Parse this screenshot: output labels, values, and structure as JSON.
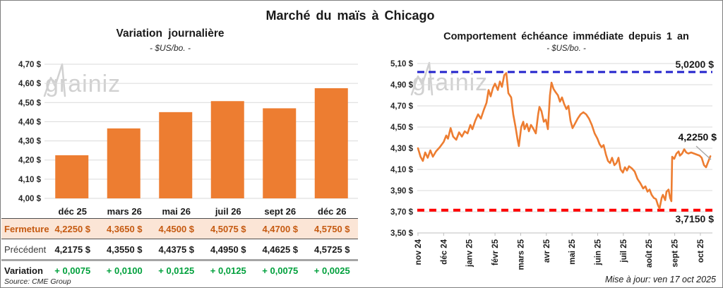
{
  "page": {
    "title": "Marché du maïs à Chicago",
    "source": "Source: CME Group",
    "updated": "Mise à jour: ven 17 oct 2025",
    "watermark_prefix": "grain",
    "watermark_suffix": "iz"
  },
  "colors": {
    "orange": "#ED7D31",
    "blue": "#2222CC",
    "red": "#FF0000",
    "green": "#00A03C",
    "close_text": "#C55A11",
    "close_bg": "#FBE5D6",
    "grid": "#DADADA",
    "axis": "#BFBFBF",
    "leader": "#A6A6A6",
    "watermark": "#D1D1D1"
  },
  "chart_data": [
    {
      "type": "bar",
      "title": "Variation journalière",
      "subtitle": "- $US/bo. -",
      "categories": [
        "déc 25",
        "mars 26",
        "mai 26",
        "juil 26",
        "sept 26",
        "déc 26"
      ],
      "values": [
        4.225,
        4.365,
        4.45,
        4.5075,
        4.47,
        4.575
      ],
      "ylim": [
        4.0,
        4.7
      ],
      "ytick_step": 0.1,
      "ytick_labels": [
        "4,00 $",
        "4,10 $",
        "4,20 $",
        "4,30 $",
        "4,40 $",
        "4,50 $",
        "4,60 $",
        "4,70 $"
      ],
      "grid": true,
      "legend": "none"
    },
    {
      "type": "line",
      "title": "Comportement échéance immédiate depuis 1 an",
      "subtitle": "- $US/bo. -",
      "x_unit": "months since nov 24 tick",
      "x_tick_labels": [
        "nov 24",
        "déc 24",
        "janv 25",
        "févr 25",
        "mars 25",
        "avr 25",
        "mai 25",
        "juin 25",
        "juil 25",
        "août 25",
        "sept 25",
        "oct 25"
      ],
      "ylim": [
        3.5,
        5.1
      ],
      "ytick_step": 0.2,
      "ytick_labels": [
        "3,50 $",
        "3,70 $",
        "3,90 $",
        "4,10 $",
        "4,30 $",
        "4,50 $",
        "4,70 $",
        "4,90 $",
        "5,10 $"
      ],
      "grid": true,
      "legend": "none",
      "reference_lines": [
        {
          "value": 5.02,
          "label": "5,0200 $",
          "color": "#2222CC",
          "style": "dashed",
          "position": "high"
        },
        {
          "value": 3.715,
          "label": "3,7150 $",
          "color": "#FF0000",
          "style": "dashed",
          "position": "low"
        }
      ],
      "last_point": {
        "label": "4,2250 $",
        "value": 4.225
      },
      "series": [
        {
          "name": "échéance immédiate",
          "points": [
            [
              0.0,
              4.3
            ],
            [
              0.1,
              4.22
            ],
            [
              0.19,
              4.18
            ],
            [
              0.28,
              4.26
            ],
            [
              0.38,
              4.21
            ],
            [
              0.48,
              4.28
            ],
            [
              0.58,
              4.22
            ],
            [
              0.7,
              4.27
            ],
            [
              0.85,
              4.31
            ],
            [
              1.0,
              4.36
            ],
            [
              1.1,
              4.42
            ],
            [
              1.17,
              4.39
            ],
            [
              1.27,
              4.49
            ],
            [
              1.37,
              4.41
            ],
            [
              1.49,
              4.38
            ],
            [
              1.6,
              4.45
            ],
            [
              1.71,
              4.41
            ],
            [
              1.82,
              4.46
            ],
            [
              1.93,
              4.44
            ],
            [
              2.04,
              4.52
            ],
            [
              2.12,
              4.48
            ],
            [
              2.23,
              4.56
            ],
            [
              2.34,
              4.62
            ],
            [
              2.45,
              4.58
            ],
            [
              2.56,
              4.66
            ],
            [
              2.67,
              4.73
            ],
            [
              2.75,
              4.85
            ],
            [
              2.83,
              4.79
            ],
            [
              2.92,
              4.87
            ],
            [
              3.0,
              4.91
            ],
            [
              3.11,
              4.85
            ],
            [
              3.19,
              4.93
            ],
            [
              3.27,
              4.88
            ],
            [
              3.36,
              4.99
            ],
            [
              3.44,
              5.01
            ],
            [
              3.52,
              4.82
            ],
            [
              3.63,
              4.78
            ],
            [
              3.71,
              4.62
            ],
            [
              3.8,
              4.5
            ],
            [
              3.88,
              4.38
            ],
            [
              3.93,
              4.32
            ],
            [
              4.02,
              4.5
            ],
            [
              4.1,
              4.55
            ],
            [
              4.15,
              4.48
            ],
            [
              4.24,
              4.53
            ],
            [
              4.32,
              4.46
            ],
            [
              4.4,
              4.52
            ],
            [
              4.48,
              4.49
            ],
            [
              4.59,
              4.44
            ],
            [
              4.68,
              4.62
            ],
            [
              4.73,
              4.69
            ],
            [
              4.81,
              4.65
            ],
            [
              4.9,
              4.55
            ],
            [
              4.98,
              4.57
            ],
            [
              5.06,
              4.48
            ],
            [
              5.14,
              4.8
            ],
            [
              5.2,
              4.92
            ],
            [
              5.28,
              4.86
            ],
            [
              5.36,
              4.83
            ],
            [
              5.45,
              4.8
            ],
            [
              5.53,
              4.74
            ],
            [
              5.61,
              4.78
            ],
            [
              5.69,
              4.72
            ],
            [
              5.78,
              4.67
            ],
            [
              5.86,
              4.7
            ],
            [
              5.94,
              4.56
            ],
            [
              6.02,
              4.49
            ],
            [
              6.11,
              4.53
            ],
            [
              6.22,
              4.58
            ],
            [
              6.33,
              4.62
            ],
            [
              6.44,
              4.64
            ],
            [
              6.55,
              4.62
            ],
            [
              6.66,
              4.58
            ],
            [
              6.77,
              4.52
            ],
            [
              6.88,
              4.44
            ],
            [
              6.99,
              4.39
            ],
            [
              7.07,
              4.34
            ],
            [
              7.15,
              4.31
            ],
            [
              7.23,
              4.33
            ],
            [
              7.32,
              4.24
            ],
            [
              7.4,
              4.18
            ],
            [
              7.48,
              4.16
            ],
            [
              7.56,
              4.21
            ],
            [
              7.65,
              4.14
            ],
            [
              7.73,
              4.16
            ],
            [
              7.81,
              4.21
            ],
            [
              7.89,
              4.1
            ],
            [
              7.98,
              4.07
            ],
            [
              8.06,
              4.12
            ],
            [
              8.14,
              4.09
            ],
            [
              8.22,
              4.13
            ],
            [
              8.33,
              4.11
            ],
            [
              8.44,
              4.08
            ],
            [
              8.55,
              4.01
            ],
            [
              8.66,
              3.97
            ],
            [
              8.77,
              3.92
            ],
            [
              8.86,
              3.94
            ],
            [
              8.94,
              3.89
            ],
            [
              9.02,
              3.91
            ],
            [
              9.1,
              3.86
            ],
            [
              9.19,
              3.83
            ],
            [
              9.27,
              3.82
            ],
            [
              9.35,
              3.76
            ],
            [
              9.41,
              3.73
            ],
            [
              9.49,
              3.83
            ],
            [
              9.54,
              3.86
            ],
            [
              9.63,
              3.81
            ],
            [
              9.68,
              3.89
            ],
            [
              9.76,
              3.91
            ],
            [
              9.82,
              3.83
            ],
            [
              9.87,
              3.8
            ],
            [
              9.9,
              4.22
            ],
            [
              9.98,
              4.2
            ],
            [
              10.07,
              4.25
            ],
            [
              10.15,
              4.27
            ],
            [
              10.2,
              4.23
            ],
            [
              10.29,
              4.25
            ],
            [
              10.37,
              4.29
            ],
            [
              10.45,
              4.26
            ],
            [
              10.53,
              4.25
            ],
            [
              10.64,
              4.26
            ],
            [
              10.75,
              4.25
            ],
            [
              10.86,
              4.24
            ],
            [
              10.97,
              4.23
            ],
            [
              11.05,
              4.21
            ],
            [
              11.14,
              4.14
            ],
            [
              11.22,
              4.12
            ],
            [
              11.3,
              4.17
            ],
            [
              11.39,
              4.225
            ]
          ]
        }
      ]
    }
  ],
  "table": {
    "columns": [
      "déc 25",
      "mars 26",
      "mai 26",
      "juil 26",
      "sept 26",
      "déc 26"
    ],
    "rows": [
      {
        "label": "Fermeture",
        "values": [
          "4,2250 $",
          "4,3650 $",
          "4,4500 $",
          "4,5075 $",
          "4,4700 $",
          "4,5750 $"
        ]
      },
      {
        "label": "Précédent",
        "values": [
          "4,2175 $",
          "4,3550 $",
          "4,4375 $",
          "4,4950 $",
          "4,4625 $",
          "4,5725 $"
        ]
      },
      {
        "label": "Variation",
        "values": [
          "+ 0,0075",
          "+ 0,0100",
          "+ 0,0125",
          "+ 0,0125",
          "+ 0,0075",
          "+ 0,0025"
        ]
      }
    ]
  }
}
